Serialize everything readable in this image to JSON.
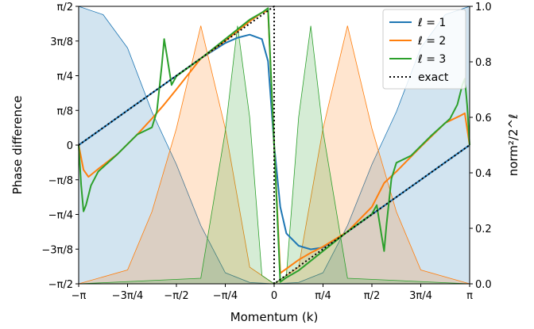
{
  "chart_data": {
    "type": "line",
    "x_axis": {
      "label": "Momentum (k)",
      "range": [
        -3.14159,
        3.14159
      ],
      "ticks": [
        {
          "value": -3.14159,
          "label": "−π"
        },
        {
          "value": -2.35619,
          "label": "−3π/4"
        },
        {
          "value": -1.5708,
          "label": "−π/2"
        },
        {
          "value": -0.7854,
          "label": "−π/4"
        },
        {
          "value": 0,
          "label": "0"
        },
        {
          "value": 0.7854,
          "label": "π/4"
        },
        {
          "value": 1.5708,
          "label": "π/2"
        },
        {
          "value": 2.35619,
          "label": "3π/4"
        },
        {
          "value": 3.14159,
          "label": "π"
        }
      ]
    },
    "y_left": {
      "label": "Phase difference",
      "range": [
        -1.5708,
        1.5708
      ],
      "ticks": [
        {
          "value": -1.5708,
          "label": "−π/2"
        },
        {
          "value": -1.1781,
          "label": "−3π/8"
        },
        {
          "value": -0.7854,
          "label": "−π/4"
        },
        {
          "value": -0.3927,
          "label": "−π/8"
        },
        {
          "value": 0,
          "label": "0"
        },
        {
          "value": 0.3927,
          "label": "π/8"
        },
        {
          "value": 0.7854,
          "label": "π/4"
        },
        {
          "value": 1.1781,
          "label": "3π/8"
        },
        {
          "value": 1.5708,
          "label": "π/2"
        }
      ]
    },
    "y_right": {
      "label": "norm²/2^ℓ",
      "range": [
        0,
        1
      ],
      "ticks": [
        {
          "value": 0,
          "label": "0.0"
        },
        {
          "value": 0.2,
          "label": "0.2"
        },
        {
          "value": 0.4,
          "label": "0.4"
        },
        {
          "value": 0.6,
          "label": "0.6"
        },
        {
          "value": 0.8,
          "label": "0.8"
        },
        {
          "value": 1,
          "label": "1.0"
        }
      ]
    },
    "legend": {
      "placement": "top-right",
      "entries": [
        {
          "label": "ℓ = 1",
          "color": "#1f77b4",
          "style": "solid"
        },
        {
          "label": "ℓ = 2",
          "color": "#ff7f0e",
          "style": "solid"
        },
        {
          "label": "ℓ = 3",
          "color": "#2ca02c",
          "style": "solid"
        },
        {
          "label": "exact",
          "color": "#000000",
          "style": "dotted"
        }
      ]
    },
    "series": [
      {
        "name": "ℓ = 1",
        "color": "#1f77b4",
        "axis": "left",
        "points": [
          [
            -3.14159,
            0
          ],
          [
            -2.74889,
            0.196
          ],
          [
            -2.35619,
            0.393
          ],
          [
            -1.9635,
            0.589
          ],
          [
            -1.5708,
            0.785
          ],
          [
            -1.1781,
            0.982
          ],
          [
            -0.7854,
            1.155
          ],
          [
            -0.5891,
            1.215
          ],
          [
            -0.3927,
            1.25
          ],
          [
            -0.1963,
            1.2
          ],
          [
            -0.0982,
            0.95
          ],
          [
            0,
            0
          ],
          [
            0.0982,
            -0.7
          ],
          [
            0.1963,
            -1.0
          ],
          [
            0.3927,
            -1.14
          ],
          [
            0.5891,
            -1.18
          ],
          [
            0.7854,
            -1.16
          ],
          [
            1.1781,
            -0.982
          ],
          [
            1.5708,
            -0.785
          ],
          [
            1.9635,
            -0.589
          ],
          [
            2.35619,
            -0.393
          ],
          [
            2.74889,
            -0.196
          ],
          [
            3.14159,
            0
          ]
        ]
      },
      {
        "name": "ℓ = 2",
        "color": "#ff7f0e",
        "axis": "left",
        "points": [
          [
            -3.14159,
            0
          ],
          [
            -3.0631,
            -0.28
          ],
          [
            -2.9845,
            -0.36
          ],
          [
            -2.8274,
            -0.27
          ],
          [
            -2.5133,
            -0.1
          ],
          [
            -2.199,
            0.12
          ],
          [
            -1.9635,
            0.3
          ],
          [
            -1.7671,
            0.46
          ],
          [
            -1.5708,
            0.63
          ],
          [
            -1.1781,
            0.98
          ],
          [
            -0.7854,
            1.18
          ],
          [
            -0.3927,
            1.4
          ],
          [
            -0.1963,
            1.5
          ],
          [
            -0.0982,
            1.52
          ],
          [
            0,
            0
          ],
          [
            0.0982,
            -1.45
          ],
          [
            0.1963,
            -1.4
          ],
          [
            0.3927,
            -1.3
          ],
          [
            0.5891,
            -1.22
          ],
          [
            0.7854,
            -1.15
          ],
          [
            1.1781,
            -0.98
          ],
          [
            1.5708,
            -0.7
          ],
          [
            1.7671,
            -0.43
          ],
          [
            1.9635,
            -0.3
          ],
          [
            2.35619,
            -0.02
          ],
          [
            2.74889,
            0.25
          ],
          [
            2.9845,
            0.33
          ],
          [
            3.0631,
            0.36
          ],
          [
            3.14159,
            0
          ]
        ]
      },
      {
        "name": "ℓ = 3",
        "color": "#2ca02c",
        "axis": "left",
        "points": [
          [
            -3.14159,
            0
          ],
          [
            -3.1024,
            -0.45
          ],
          [
            -3.0631,
            -0.75
          ],
          [
            -3.0238,
            -0.68
          ],
          [
            -2.9452,
            -0.46
          ],
          [
            -2.8274,
            -0.3
          ],
          [
            -2.6704,
            -0.2
          ],
          [
            -2.5133,
            -0.1
          ],
          [
            -2.199,
            0.12
          ],
          [
            -1.9635,
            0.2
          ],
          [
            -1.8849,
            0.38
          ],
          [
            -1.8064,
            0.9
          ],
          [
            -1.7671,
            1.2
          ],
          [
            -1.7278,
            1.03
          ],
          [
            -1.6493,
            0.68
          ],
          [
            -1.5708,
            0.78
          ],
          [
            -1.1781,
            0.98
          ],
          [
            -0.7854,
            1.2
          ],
          [
            -0.3927,
            1.42
          ],
          [
            -0.1963,
            1.5
          ],
          [
            -0.0982,
            1.55
          ],
          [
            0,
            0
          ],
          [
            0.0982,
            -1.55
          ],
          [
            0.1963,
            -1.5
          ],
          [
            0.3927,
            -1.42
          ],
          [
            0.7854,
            -1.2
          ],
          [
            1.1781,
            -0.98
          ],
          [
            1.5708,
            -0.78
          ],
          [
            1.6493,
            -0.68
          ],
          [
            1.7278,
            -1.03
          ],
          [
            1.7671,
            -1.2
          ],
          [
            1.8064,
            -0.9
          ],
          [
            1.8849,
            -0.38
          ],
          [
            1.9635,
            -0.2
          ],
          [
            2.199,
            -0.12
          ],
          [
            2.5133,
            0.1
          ],
          [
            2.6704,
            0.2
          ],
          [
            2.8274,
            0.3
          ],
          [
            2.9452,
            0.46
          ],
          [
            3.0238,
            0.68
          ],
          [
            3.0631,
            0.75
          ],
          [
            3.1024,
            0.45
          ],
          [
            3.14159,
            0
          ]
        ]
      },
      {
        "name": "exact",
        "color": "#000000",
        "axis": "left",
        "points": [
          [
            -3.14159,
            0
          ],
          [
            -1.5708,
            0.785
          ],
          [
            -0.0001,
            1.5708
          ],
          [
            0.0001,
            -1.5708
          ],
          [
            1.5708,
            -0.785
          ],
          [
            3.14159,
            0
          ]
        ]
      }
    ],
    "fills": [
      {
        "name": "ℓ = 1 norm",
        "color": "#1f77b4",
        "axis": "right",
        "points": [
          [
            -3.14159,
            1
          ],
          [
            -2.74889,
            0.97
          ],
          [
            -2.35619,
            0.85
          ],
          [
            -1.9635,
            0.62
          ],
          [
            -1.5708,
            0.43
          ],
          [
            -1.1781,
            0.21
          ],
          [
            -0.7854,
            0.04
          ],
          [
            -0.3927,
            0.005
          ],
          [
            0,
            0
          ],
          [
            0.3927,
            0.005
          ],
          [
            0.7854,
            0.04
          ],
          [
            1.1781,
            0.21
          ],
          [
            1.5708,
            0.43
          ],
          [
            1.9635,
            0.62
          ],
          [
            2.35619,
            0.85
          ],
          [
            2.74889,
            0.97
          ],
          [
            3.14159,
            1
          ]
        ]
      },
      {
        "name": "ℓ = 2 norm",
        "color": "#ff7f0e",
        "axis": "right",
        "points": [
          [
            -3.14159,
            0
          ],
          [
            -2.35619,
            0.05
          ],
          [
            -1.9635,
            0.26
          ],
          [
            -1.5708,
            0.56
          ],
          [
            -1.1781,
            0.93
          ],
          [
            -0.7854,
            0.56
          ],
          [
            -0.3927,
            0.06
          ],
          [
            0,
            0
          ],
          [
            0.3927,
            0.06
          ],
          [
            0.7854,
            0.56
          ],
          [
            1.1781,
            0.93
          ],
          [
            1.5708,
            0.56
          ],
          [
            1.9635,
            0.26
          ],
          [
            2.35619,
            0.05
          ],
          [
            3.14159,
            0
          ]
        ]
      },
      {
        "name": "ℓ = 3 norm",
        "color": "#2ca02c",
        "axis": "right",
        "points": [
          [
            -3.14159,
            0
          ],
          [
            -1.1781,
            0.02
          ],
          [
            -0.7854,
            0.55
          ],
          [
            -0.5891,
            0.93
          ],
          [
            -0.3927,
            0.6
          ],
          [
            -0.1963,
            0.03
          ],
          [
            0,
            0
          ],
          [
            0.1963,
            0.03
          ],
          [
            0.3927,
            0.6
          ],
          [
            0.5891,
            0.93
          ],
          [
            0.7854,
            0.55
          ],
          [
            1.1781,
            0.02
          ],
          [
            3.14159,
            0
          ]
        ]
      }
    ]
  }
}
